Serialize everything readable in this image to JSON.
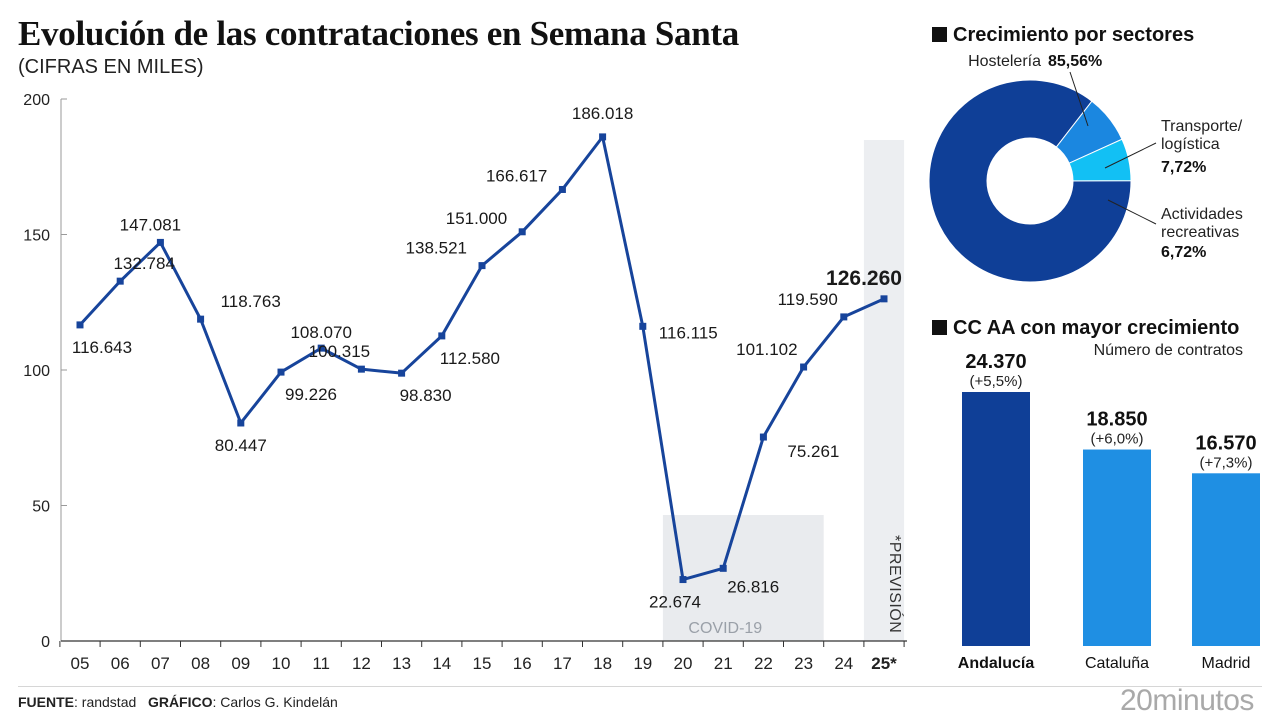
{
  "header": {
    "title": "Evolución de las contrataciones en Semana Santa",
    "subtitle": "(CIFRAS EN MILES)"
  },
  "chart_data": [
    {
      "type": "line",
      "title": "Evolución de las contrataciones en Semana Santa",
      "subtitle": "(CIFRAS EN MILES)",
      "ylim": [
        0,
        200
      ],
      "yticks": [
        0,
        50,
        100,
        150,
        200
      ],
      "categories": [
        "05",
        "06",
        "07",
        "08",
        "09",
        "10",
        "11",
        "12",
        "13",
        "14",
        "15",
        "16",
        "17",
        "18",
        "19",
        "20",
        "21",
        "22",
        "23",
        "24",
        "25*"
      ],
      "values": [
        116.643,
        132.784,
        147.081,
        118.763,
        80.447,
        99.226,
        108.07,
        100.315,
        98.83,
        112.58,
        138.521,
        151.0,
        166.617,
        186.018,
        116.115,
        22.674,
        26.816,
        75.261,
        101.102,
        119.59,
        126.26
      ],
      "data_labels": [
        "116.643",
        "132.784",
        "147.081",
        "118.763",
        "80.447",
        "99.226",
        "108.070",
        "100.315",
        "98.830",
        "112.580",
        "138.521",
        "151.000",
        "166.617",
        "186.018",
        "116.115",
        "22.674",
        "26.816",
        "75.261",
        "101.102",
        "119.590",
        "126.260"
      ],
      "highlighted": [
        "25*"
      ],
      "annotations": [
        {
          "text": "COVID-19",
          "categories": [
            "20",
            "21",
            "22",
            "23"
          ]
        },
        {
          "text": "*PREVISIÓN",
          "categories": [
            "25*"
          ]
        }
      ],
      "color": "#17449b",
      "grid": false
    },
    {
      "type": "pie",
      "title": "Crecimiento por sectores",
      "slices": [
        {
          "label": "Hostelería",
          "value": 85.56,
          "value_label": "85,56%",
          "color": "#0f3f97"
        },
        {
          "label_lines": [
            "Transporte/",
            "logística"
          ],
          "value": 7.72,
          "value_label": "7,72%",
          "color": "#1b87e0"
        },
        {
          "label_lines": [
            "Actividades",
            "recreativas"
          ],
          "value": 6.72,
          "value_label": "6,72%",
          "color": "#12c0f4"
        }
      ]
    },
    {
      "type": "bar",
      "title": "CC AA con mayor crecimiento",
      "subtitle": "Número de contratos",
      "categories": [
        "Andalucía",
        "Cataluña",
        "Madrid"
      ],
      "values": [
        24370,
        18850,
        16570
      ],
      "value_labels": [
        "24.370",
        "18.850",
        "16.570"
      ],
      "change_labels": [
        "(+5,5%)",
        "(+6,0%)",
        "(+7,3%)"
      ],
      "colors": [
        "#0f3f97",
        "#1f8fe3",
        "#1f8fe3"
      ],
      "highlighted": [
        "Andalucía"
      ]
    }
  ],
  "footer": {
    "source_label": "FUENTE",
    "source_value": ": randstad",
    "graphic_label": "GRÁFICO",
    "graphic_value": ": Carlos G. Kindelán"
  },
  "brand": "20minutos"
}
